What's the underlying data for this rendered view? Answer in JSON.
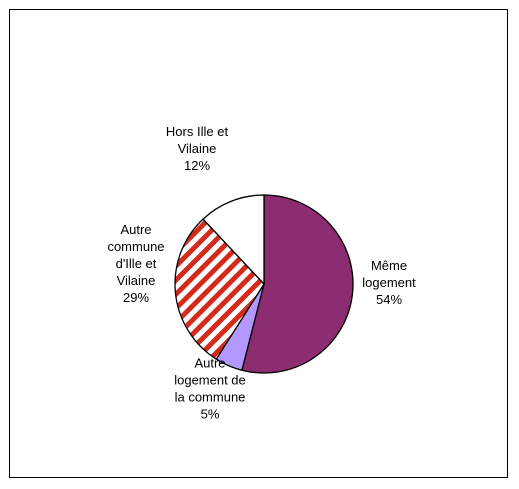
{
  "chart_data": {
    "type": "pie",
    "title": "",
    "start": "12 o'clock, clockwise",
    "slices": [
      {
        "label": [
          "Même",
          "logement"
        ],
        "value": 54,
        "display": "54%",
        "color": "#8b2d70",
        "fill": "solid"
      },
      {
        "label": [
          "Autre",
          "logement de",
          "la commune"
        ],
        "value": 5,
        "display": "5%",
        "color": "#b399ff",
        "fill": "solid"
      },
      {
        "label": [
          "Autre",
          "commune",
          "d'Ille et",
          "Vilaine"
        ],
        "value": 29,
        "display": "29%",
        "color": "#d42a1c",
        "fill": "diagonal-stripes"
      },
      {
        "label": [
          "Hors Ille et",
          "Vilaine"
        ],
        "value": 12,
        "display": "12%",
        "color": "#ffffff",
        "fill": "solid"
      }
    ]
  }
}
